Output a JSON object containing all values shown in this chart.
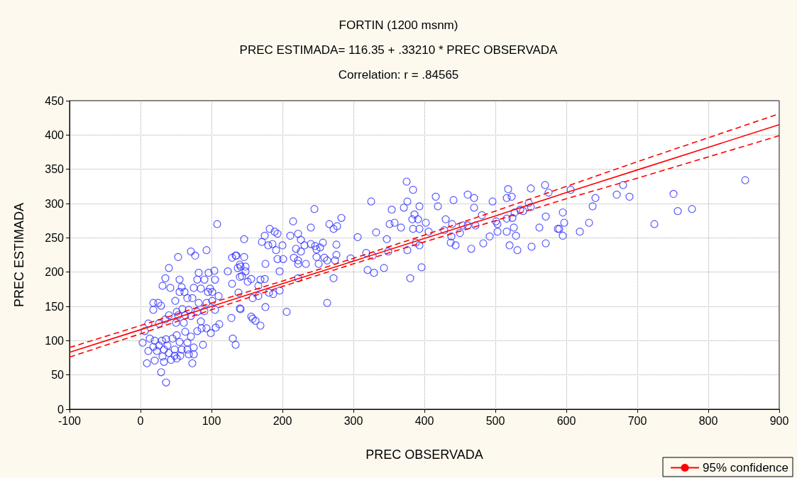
{
  "chart_data": {
    "type": "scatter",
    "title": "FORTIN (1200 msnm)",
    "subtitle": "PREC ESTIMADA= 116.35 + .33210 * PREC OBSERVADA",
    "annotations": [
      "Correlation: r = .84565"
    ],
    "xlabel": "PREC OBSERVADA",
    "ylabel": "PREC ESTIMADA",
    "xlim": [
      -100,
      900
    ],
    "xticks": [
      -100,
      0,
      100,
      200,
      300,
      400,
      500,
      600,
      700,
      800,
      900
    ],
    "ylim": [
      0,
      450
    ],
    "yticks": [
      0,
      50,
      100,
      150,
      200,
      250,
      300,
      350,
      400,
      450
    ],
    "grid": true,
    "legend": "bottom right",
    "series": [
      {
        "color": "#3333ff",
        "marker": "circle",
        "x": [
          108,
          71,
          77,
          93,
          53,
          40,
          35,
          31,
          42,
          55,
          58,
          55,
          62,
          66,
          73,
          75,
          82,
          80,
          90,
          96,
          104,
          105,
          98,
          85,
          95,
          101,
          110,
          93,
          101,
          82,
          49,
          18,
          25,
          18,
          29,
          40,
          51,
          59,
          68,
          53,
          63,
          71,
          80,
          90,
          105,
          35,
          26,
          11,
          6,
          50,
          61,
          85,
          86,
          111,
          106,
          128,
          130,
          134,
          93,
          99,
          88,
          3,
          13,
          20,
          30,
          36,
          45,
          51,
          63,
          71,
          80,
          75,
          66,
          55,
          38,
          26,
          18,
          11,
          23,
          33,
          48,
          58,
          66,
          75,
          68,
          56,
          48,
          40,
          31,
          20,
          9,
          33,
          43,
          51,
          73,
          29,
          36,
          129,
          134,
          123,
          129,
          140,
          140,
          140,
          146,
          175,
          182,
          189,
          193,
          171,
          180,
          186,
          191,
          200,
          215,
          211,
          222,
          226,
          231,
          219,
          226,
          216,
          222,
          222,
          233,
          193,
          201,
          176,
          146,
          135,
          141,
          148,
          137,
          148,
          143,
          156,
          151,
          196,
          175,
          169,
          166,
          138,
          166,
          181,
          187,
          196,
          158,
          141,
          176,
          156,
          158,
          162,
          169,
          206,
          222,
          240,
          245,
          240,
          246,
          253,
          257,
          248,
          248,
          259,
          251,
          263,
          266,
          272,
          277,
          283,
          276,
          276,
          274,
          272,
          263,
          296,
          306,
          318,
          327,
          320,
          329,
          343,
          332,
          325,
          347,
          349,
          351,
          354,
          358,
          367,
          371,
          376,
          375,
          376,
          380,
          384,
          393,
          386,
          383,
          391,
          402,
          384,
          393,
          406,
          388,
          393,
          396,
          416,
          419,
          441,
          430,
          439,
          428,
          438,
          437,
          444,
          450,
          454,
          461,
          461,
          470,
          470,
          481,
          472,
          466,
          483,
          492,
          496,
          501,
          503,
          503,
          516,
          518,
          523,
          516,
          524,
          526,
          516,
          529,
          520,
          531,
          527,
          535,
          539,
          547,
          550,
          550,
          551,
          562,
          570,
          575,
          571,
          571,
          588,
          590,
          595,
          597,
          595,
          606,
          619,
          632,
          637,
          641,
          671,
          680,
          689,
          751,
          724,
          757,
          777,
          852
        ],
        "values": [
          270,
          230,
          224,
          232,
          222,
          206,
          191,
          180,
          177,
          189,
          178,
          171,
          171,
          162,
          162,
          177,
          199,
          189,
          189,
          199,
          202,
          189,
          176,
          176,
          171,
          171,
          165,
          155,
          158,
          155,
          158,
          155,
          155,
          145,
          151,
          137,
          142,
          146,
          145,
          137,
          137,
          136,
          142,
          143,
          145,
          131,
          125,
          125,
          114,
          126,
          126,
          128,
          118,
          124,
          119,
          133,
          103,
          94,
          118,
          111,
          94,
          97,
          103,
          100,
          100,
          102,
          103,
          108,
          113,
          106,
          114,
          90,
          97,
          98,
          93,
          93,
          91,
          85,
          85,
          87,
          87,
          87,
          87,
          80,
          80,
          78,
          78,
          82,
          77,
          71,
          67,
          69,
          72,
          74,
          67,
          54,
          39,
          221,
          224,
          201,
          183,
          211,
          147,
          193,
          248,
          253,
          263,
          259,
          256,
          244,
          239,
          241,
          232,
          239,
          274,
          253,
          256,
          247,
          239,
          234,
          230,
          221,
          217,
          212,
          212,
          219,
          219,
          212,
          222,
          224,
          208,
          208,
          206,
          201,
          194,
          190,
          186,
          201,
          190,
          189,
          180,
          170,
          165,
          170,
          168,
          173,
          162,
          146,
          149,
          135,
          132,
          129,
          122,
          142,
          191,
          265,
          292,
          241,
          238,
          236,
          243,
          233,
          222,
          221,
          212,
          217,
          270,
          263,
          267,
          279,
          240,
          225,
          217,
          191,
          155,
          220,
          251,
          228,
          224,
          203,
          199,
          206,
          258,
          303,
          248,
          230,
          270,
          291,
          272,
          265,
          294,
          303,
          332,
          232,
          191,
          320,
          296,
          284,
          277,
          277,
          272,
          263,
          263,
          259,
          243,
          239,
          207,
          310,
          296,
          305,
          277,
          270,
          261,
          252,
          243,
          239,
          257,
          268,
          268,
          313,
          308,
          294,
          283,
          268,
          234,
          242,
          252,
          303,
          274,
          270,
          259,
          308,
          321,
          310,
          278,
          279,
          265,
          259,
          253,
          239,
          232,
          287,
          291,
          289,
          301,
          322,
          295,
          237,
          265,
          327,
          316,
          281,
          242,
          263,
          263,
          287,
          272,
          253,
          320,
          259,
          272,
          296,
          308,
          313,
          327,
          310,
          314,
          270,
          289,
          292,
          334
        ]
      },
      {
        "type": "line",
        "name": "95% confidence",
        "color": "#ff0000",
        "marker": "none",
        "line_style": "solid",
        "x": [
          -100,
          0,
          100,
          200,
          300,
          400,
          500,
          600,
          700,
          800,
          900
        ],
        "values": [
          83,
          116,
          150,
          183,
          216,
          249,
          282,
          316,
          349,
          382,
          415
        ]
      },
      {
        "type": "line",
        "color": "#ff0000",
        "marker": "none",
        "line_style": "dashed",
        "x": [
          -100,
          0,
          100,
          200,
          300,
          400,
          500,
          600,
          700,
          800,
          900
        ],
        "values": [
          76,
          110,
          145,
          179,
          212,
          244,
          275,
          307,
          337,
          368,
          399
        ]
      },
      {
        "type": "line",
        "color": "#ff0000",
        "marker": "none",
        "line_style": "dashed",
        "x": [
          -100,
          0,
          100,
          200,
          300,
          400,
          500,
          600,
          700,
          800,
          900
        ],
        "values": [
          90,
          122,
          155,
          187,
          220,
          254,
          289,
          325,
          361,
          396,
          431
        ]
      }
    ]
  }
}
